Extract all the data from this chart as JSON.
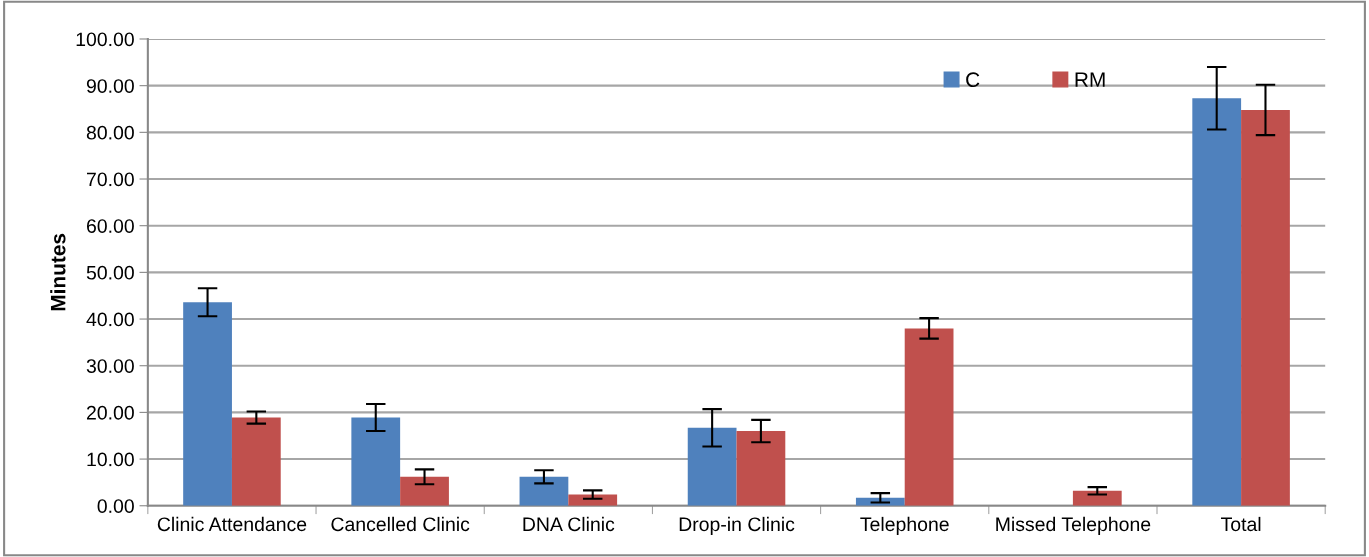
{
  "chart_data": {
    "type": "bar",
    "ylabel": "Minutes",
    "categories": [
      "Clinic Attendance",
      "Cancelled Clinic",
      "DNA Clinic",
      "Drop-in Clinic",
      "Telephone",
      "Missed Telephone",
      "Total"
    ],
    "series": [
      {
        "name": "C",
        "color": "#4f81bd",
        "values": [
          43.6,
          18.9,
          6.2,
          16.7,
          1.7,
          null,
          87.3
        ],
        "errors": [
          3.0,
          2.9,
          1.4,
          4.0,
          1.0,
          null,
          6.7
        ]
      },
      {
        "name": "RM",
        "color": "#c0504d",
        "values": [
          18.9,
          6.2,
          2.4,
          16.0,
          38.0,
          3.2,
          84.8
        ],
        "errors": [
          1.3,
          1.6,
          0.9,
          2.4,
          2.2,
          0.8,
          5.4
        ]
      }
    ],
    "ylim": [
      0,
      100
    ],
    "yticks": [
      {
        "value": 0,
        "label": "0.00"
      },
      {
        "value": 10,
        "label": "10.00"
      },
      {
        "value": 20,
        "label": "20.00"
      },
      {
        "value": 30,
        "label": "30.00"
      },
      {
        "value": 40,
        "label": "40.00"
      },
      {
        "value": 50,
        "label": "50.00"
      },
      {
        "value": 60,
        "label": "60.00"
      },
      {
        "value": 70,
        "label": "70.00"
      },
      {
        "value": 80,
        "label": "80.00"
      },
      {
        "value": 90,
        "label": "90.00"
      },
      {
        "value": 100,
        "label": "100.00"
      }
    ],
    "grid": "y",
    "legend": "top right"
  }
}
